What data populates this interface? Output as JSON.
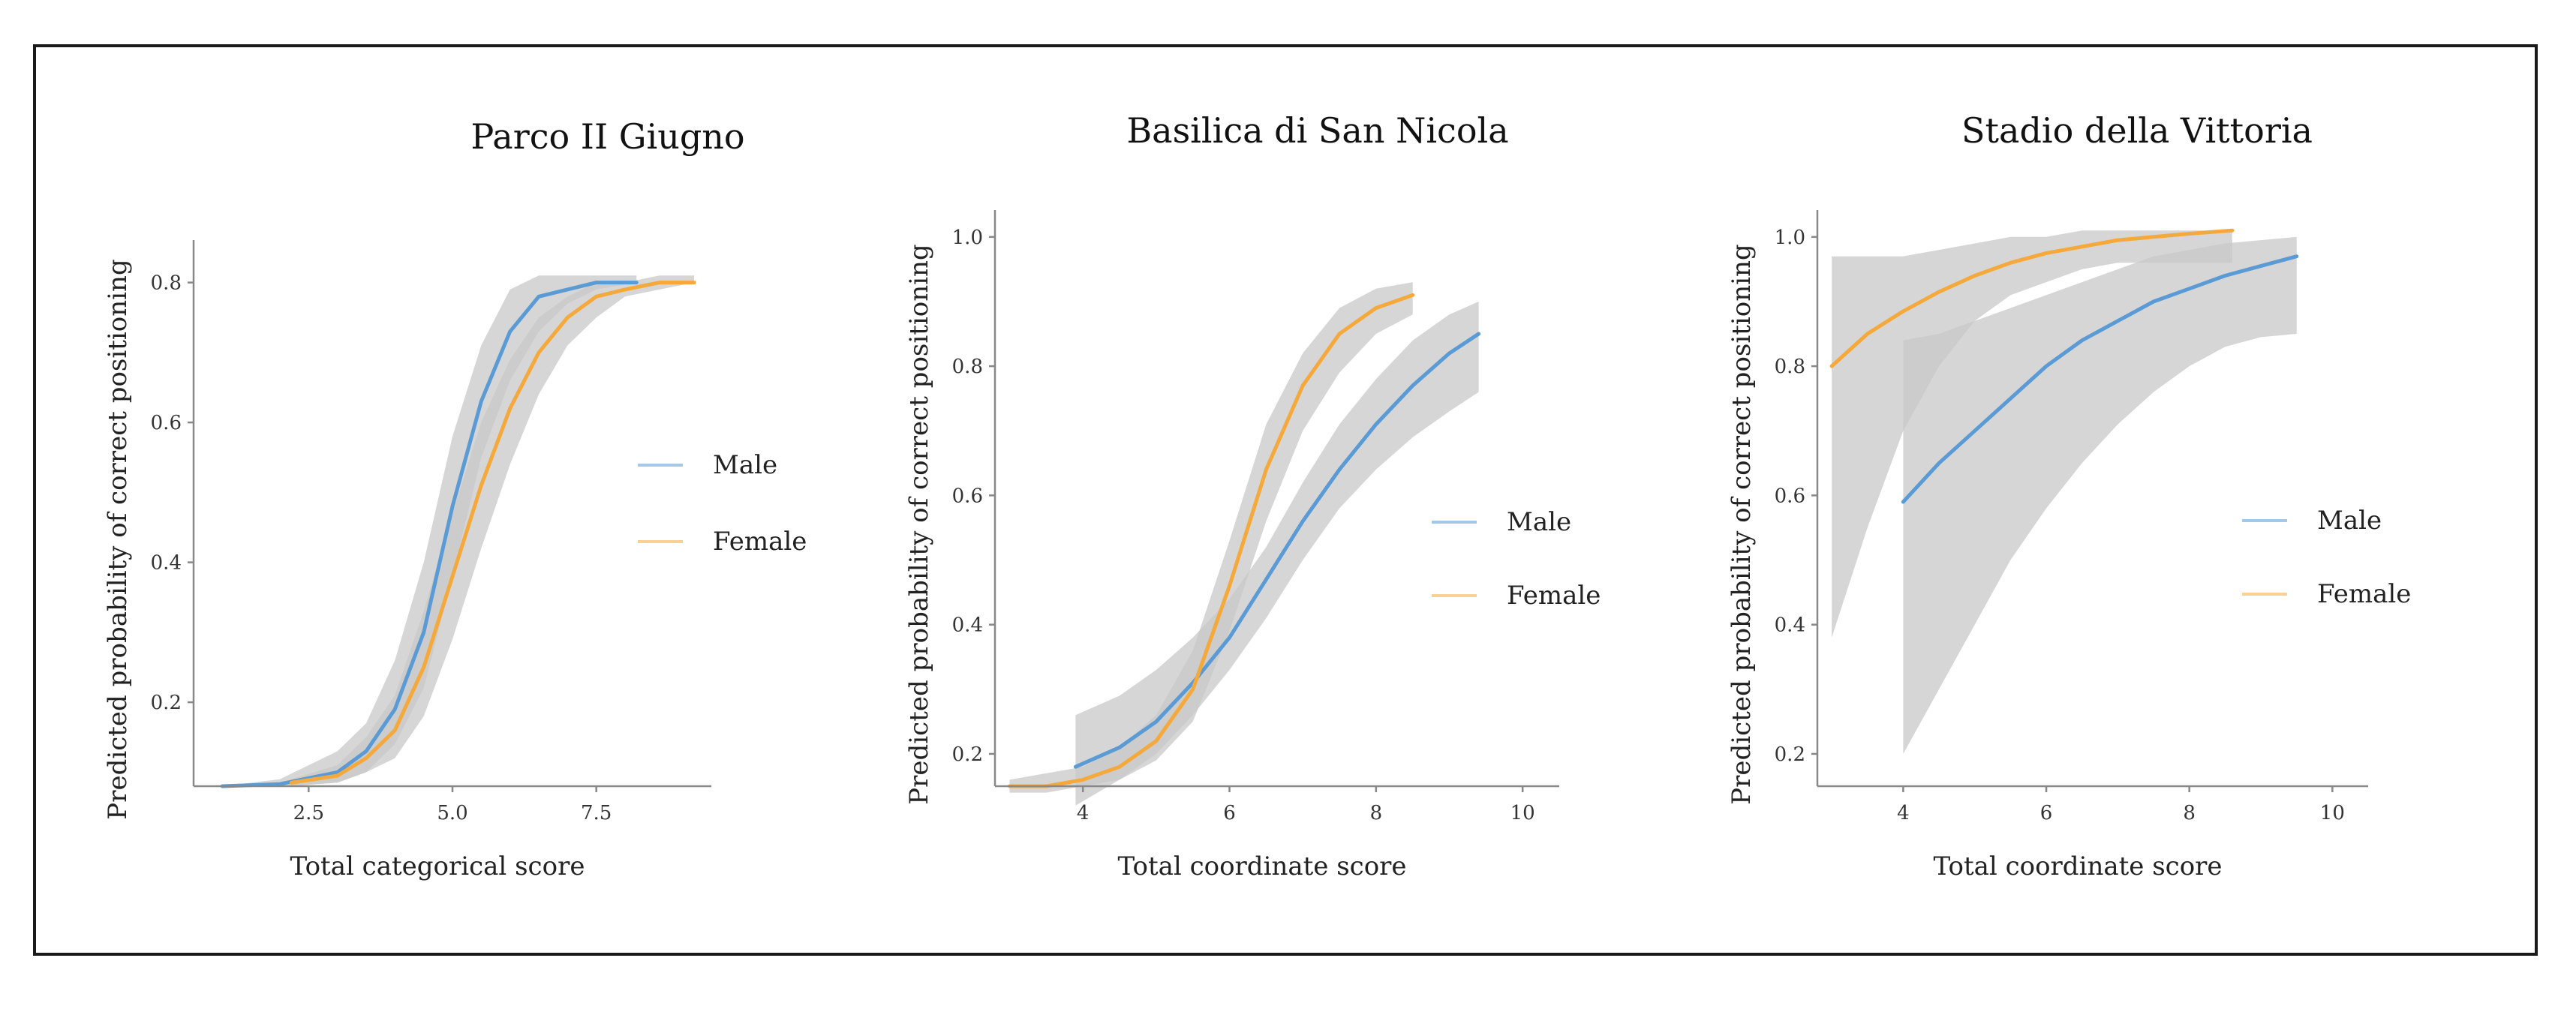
{
  "colors": {
    "male": "#5b9bd5",
    "female": "#f5a93b",
    "band": "#c8c8c8"
  },
  "chart_data": [
    {
      "type": "line",
      "title": "Parco II Giugno",
      "xlabel": "Total categorical score",
      "ylabel": "Predicted probability of correct positioning",
      "xlim": [
        0.5,
        9.5
      ],
      "ylim": [
        0.08,
        0.85
      ],
      "xticks": [
        "2.5",
        "5.0",
        "7.5"
      ],
      "xtick_values": [
        2.5,
        5.0,
        7.5
      ],
      "yticks": [
        "0.2",
        "0.4",
        "0.6",
        "0.8"
      ],
      "ytick_values": [
        0.2,
        0.4,
        0.6,
        0.8
      ],
      "grid": false,
      "legend": "right",
      "series": [
        {
          "name": "Male",
          "color_key": "male",
          "x": [
            1.0,
            2.0,
            3.0,
            3.5,
            4.0,
            4.5,
            5.0,
            5.5,
            6.0,
            6.5,
            7.0,
            7.5,
            8.2
          ],
          "y": [
            0.08,
            0.083,
            0.1,
            0.13,
            0.19,
            0.3,
            0.48,
            0.63,
            0.73,
            0.78,
            0.79,
            0.8,
            0.8
          ],
          "lower": [
            0.08,
            0.08,
            0.085,
            0.1,
            0.14,
            0.22,
            0.38,
            0.55,
            0.66,
            0.73,
            0.77,
            0.79,
            0.8
          ],
          "upper": [
            0.08,
            0.09,
            0.13,
            0.17,
            0.26,
            0.4,
            0.58,
            0.71,
            0.79,
            0.81,
            0.81,
            0.81,
            0.81
          ]
        },
        {
          "name": "Female",
          "color_key": "female",
          "x": [
            2.2,
            3.0,
            3.5,
            4.0,
            4.5,
            5.0,
            5.5,
            6.0,
            6.5,
            7.0,
            7.5,
            8.0,
            8.6,
            9.2
          ],
          "y": [
            0.085,
            0.095,
            0.12,
            0.16,
            0.25,
            0.38,
            0.51,
            0.62,
            0.7,
            0.75,
            0.78,
            0.79,
            0.8,
            0.8
          ],
          "lower": [
            0.08,
            0.085,
            0.1,
            0.12,
            0.18,
            0.29,
            0.42,
            0.54,
            0.64,
            0.71,
            0.75,
            0.78,
            0.79,
            0.8
          ],
          "upper": [
            0.09,
            0.11,
            0.15,
            0.21,
            0.33,
            0.47,
            0.6,
            0.69,
            0.75,
            0.78,
            0.8,
            0.8,
            0.81,
            0.81
          ]
        }
      ]
    },
    {
      "type": "line",
      "title": "Basilica di San Nicola",
      "xlabel": "Total coordinate score",
      "ylabel": "Predicted probability of correct positioning",
      "xlim": [
        2.8,
        10.5
      ],
      "ylim": [
        0.15,
        1.03
      ],
      "xticks": [
        "4",
        "6",
        "8",
        "10"
      ],
      "xtick_values": [
        4,
        6,
        8,
        10
      ],
      "yticks": [
        "0.2",
        "0.4",
        "0.6",
        "0.8",
        "1.0"
      ],
      "ytick_values": [
        0.2,
        0.4,
        0.6,
        0.8,
        1.0
      ],
      "grid": false,
      "legend": "right",
      "series": [
        {
          "name": "Male",
          "color_key": "male",
          "x": [
            3.9,
            4.5,
            5.0,
            5.5,
            6.0,
            6.5,
            7.0,
            7.5,
            8.0,
            8.5,
            9.0,
            9.4
          ],
          "y": [
            0.18,
            0.21,
            0.25,
            0.31,
            0.38,
            0.47,
            0.56,
            0.64,
            0.71,
            0.77,
            0.82,
            0.85
          ],
          "lower": [
            0.12,
            0.16,
            0.2,
            0.26,
            0.33,
            0.41,
            0.5,
            0.58,
            0.64,
            0.69,
            0.73,
            0.76
          ],
          "upper": [
            0.26,
            0.29,
            0.33,
            0.38,
            0.44,
            0.52,
            0.62,
            0.71,
            0.78,
            0.84,
            0.88,
            0.9
          ]
        },
        {
          "name": "Female",
          "color_key": "female",
          "x": [
            3.0,
            3.5,
            4.0,
            4.5,
            5.0,
            5.5,
            6.0,
            6.5,
            7.0,
            7.5,
            8.0,
            8.5
          ],
          "y": [
            0.15,
            0.15,
            0.16,
            0.18,
            0.22,
            0.3,
            0.46,
            0.64,
            0.77,
            0.85,
            0.89,
            0.91
          ],
          "lower": [
            0.14,
            0.14,
            0.15,
            0.16,
            0.19,
            0.25,
            0.39,
            0.56,
            0.7,
            0.79,
            0.85,
            0.88
          ],
          "upper": [
            0.16,
            0.17,
            0.18,
            0.21,
            0.26,
            0.36,
            0.53,
            0.71,
            0.82,
            0.89,
            0.92,
            0.93
          ]
        }
      ]
    },
    {
      "type": "line",
      "title": "Stadio della Vittoria",
      "xlabel": "Total coordinate score",
      "ylabel": "Predicted probability of correct positioning",
      "xlim": [
        2.8,
        10.5
      ],
      "ylim": [
        0.15,
        1.03
      ],
      "xticks": [
        "4",
        "6",
        "8",
        "10"
      ],
      "xtick_values": [
        4,
        6,
        8,
        10
      ],
      "yticks": [
        "0.2",
        "0.4",
        "0.6",
        "0.8",
        "1.0"
      ],
      "ytick_values": [
        0.2,
        0.4,
        0.6,
        0.8,
        1.0
      ],
      "grid": false,
      "legend": "right",
      "series": [
        {
          "name": "Male",
          "color_key": "male",
          "x": [
            4.0,
            4.5,
            5.0,
            5.5,
            6.0,
            6.5,
            7.0,
            7.5,
            8.0,
            8.5,
            9.0,
            9.5
          ],
          "y": [
            0.59,
            0.65,
            0.7,
            0.75,
            0.8,
            0.84,
            0.87,
            0.9,
            0.92,
            0.94,
            0.955,
            0.97
          ],
          "lower": [
            0.2,
            0.3,
            0.4,
            0.5,
            0.58,
            0.65,
            0.71,
            0.76,
            0.8,
            0.83,
            0.845,
            0.85
          ],
          "upper": [
            0.84,
            0.85,
            0.87,
            0.89,
            0.91,
            0.93,
            0.95,
            0.97,
            0.98,
            0.99,
            0.995,
            1.0
          ]
        },
        {
          "name": "Female",
          "color_key": "female",
          "x": [
            3.0,
            3.5,
            4.0,
            4.5,
            5.0,
            5.5,
            6.0,
            6.5,
            7.0,
            7.5,
            8.0,
            8.6
          ],
          "y": [
            0.8,
            0.85,
            0.885,
            0.915,
            0.94,
            0.96,
            0.975,
            0.985,
            0.995,
            1.0,
            1.005,
            1.01
          ],
          "lower": [
            0.38,
            0.55,
            0.7,
            0.8,
            0.87,
            0.91,
            0.93,
            0.95,
            0.96,
            0.96,
            0.96,
            0.96
          ],
          "upper": [
            0.97,
            0.97,
            0.97,
            0.98,
            0.99,
            1.0,
            1.0,
            1.01,
            1.01,
            1.01,
            1.01,
            1.01
          ]
        }
      ]
    }
  ]
}
